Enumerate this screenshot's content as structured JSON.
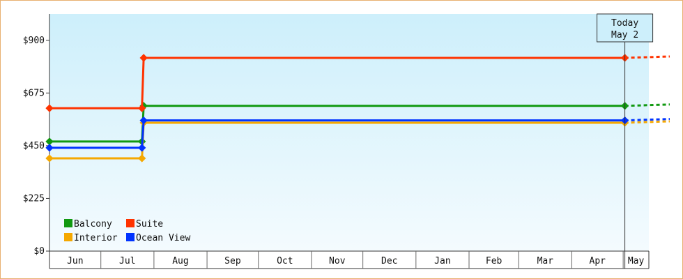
{
  "chart_data": {
    "type": "line",
    "title": "",
    "xlabel": "",
    "ylabel": "",
    "ylim": [
      0,
      1012.5
    ],
    "y_ticks": [
      "$0",
      "$225",
      "$450",
      "$675",
      "$900"
    ],
    "y_tick_values": [
      0,
      225,
      450,
      675,
      900
    ],
    "months": [
      "Jun",
      "Jul",
      "Aug",
      "Sep",
      "Oct",
      "Nov",
      "Dec",
      "Jan",
      "Feb",
      "Mar",
      "Apr",
      "May"
    ],
    "x_range": [
      "2023-06-01",
      "2024-05-16"
    ],
    "today": {
      "label_line1": "Today",
      "label_line2": "May 2",
      "date": "2024-05-02"
    },
    "step_interpolation": true,
    "projection_after_today": "dotted",
    "legend_position": "bottom-left",
    "series": [
      {
        "name": "Balcony",
        "color": "#119911",
        "x": [
          "2023-06-01",
          "2023-07-25",
          "2023-07-26",
          "2024-05-02"
        ],
        "y": [
          468,
          468,
          620,
          620
        ]
      },
      {
        "name": "Suite",
        "color": "#ff3300",
        "x": [
          "2023-06-01",
          "2023-07-25",
          "2023-07-26",
          "2024-05-02"
        ],
        "y": [
          610,
          610,
          825,
          825
        ]
      },
      {
        "name": "Interior",
        "color": "#f5a800",
        "x": [
          "2023-06-01",
          "2023-07-25",
          "2023-07-26",
          "2024-05-02"
        ],
        "y": [
          396,
          396,
          548,
          548
        ]
      },
      {
        "name": "Ocean View",
        "color": "#0033ff",
        "x": [
          "2023-06-01",
          "2023-07-25",
          "2023-07-26",
          "2024-05-02"
        ],
        "y": [
          441,
          441,
          558,
          558
        ]
      }
    ]
  }
}
